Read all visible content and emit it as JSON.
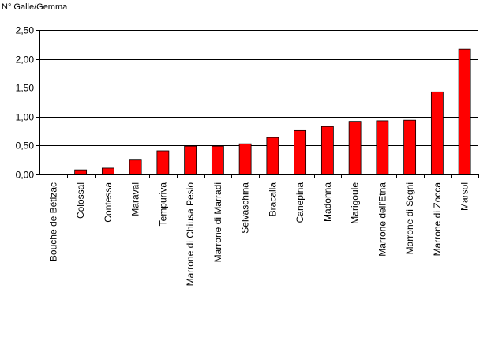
{
  "chart_data": {
    "type": "bar",
    "title": "",
    "ylabel": "N° Galle/Gemma",
    "xlabel": "",
    "ylim": [
      0,
      2.5
    ],
    "yticks": [
      "0,00",
      "0,50",
      "1,00",
      "1,50",
      "2,00",
      "2,50"
    ],
    "grid": true,
    "legend": "none",
    "categories": [
      "Bouche de Bétizac",
      "Colossal",
      "Contessa",
      "Maraval",
      "Tempuriva",
      "Marrone di Chiusa Pesio",
      "Marrone di Marradi",
      "Selvaschina",
      "Bracalla",
      "Canepina",
      "Madonna",
      "Marigoule",
      "Marrone dell'Etna",
      "Marrone di Segni",
      "Marrone di Zocca",
      "Marsol"
    ],
    "values": [
      0.0,
      0.08,
      0.11,
      0.25,
      0.41,
      0.49,
      0.49,
      0.53,
      0.64,
      0.76,
      0.83,
      0.92,
      0.93,
      0.94,
      1.43,
      2.17
    ],
    "colors": {
      "bar": "#ff0000",
      "bar_stroke": "#000000",
      "grid": "#000000"
    }
  }
}
